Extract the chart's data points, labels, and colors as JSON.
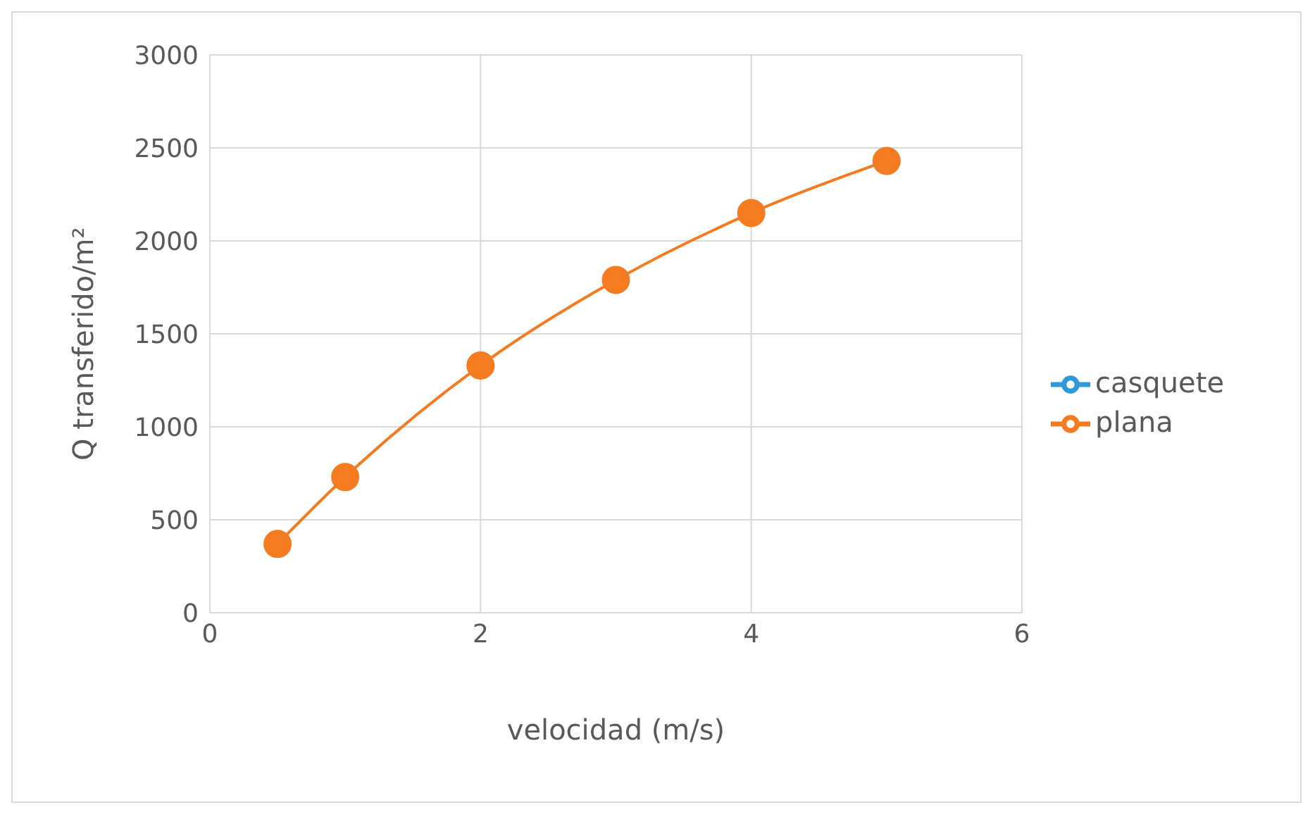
{
  "chart_data": {
    "type": "line",
    "xlabel": "velocidad (m/s)",
    "ylabel": "Q transferido/m²",
    "x": [
      0.5,
      1,
      2,
      3,
      4,
      5
    ],
    "series": [
      {
        "name": "casquete",
        "color": "#2e9bd6",
        "values": [
          null,
          null,
          null,
          null,
          null,
          null
        ]
      },
      {
        "name": "plana",
        "color": "#f47b20",
        "values": [
          370,
          730,
          1330,
          1790,
          2150,
          2430
        ]
      }
    ],
    "xlim": [
      0,
      6
    ],
    "xticks": [
      0,
      2,
      4,
      6
    ],
    "ylim": [
      0,
      3000
    ],
    "yticks": [
      0,
      500,
      1000,
      1500,
      2000,
      2500,
      3000
    ],
    "grid": true,
    "legend": "right",
    "marker": "circle",
    "line_style": "solid"
  }
}
